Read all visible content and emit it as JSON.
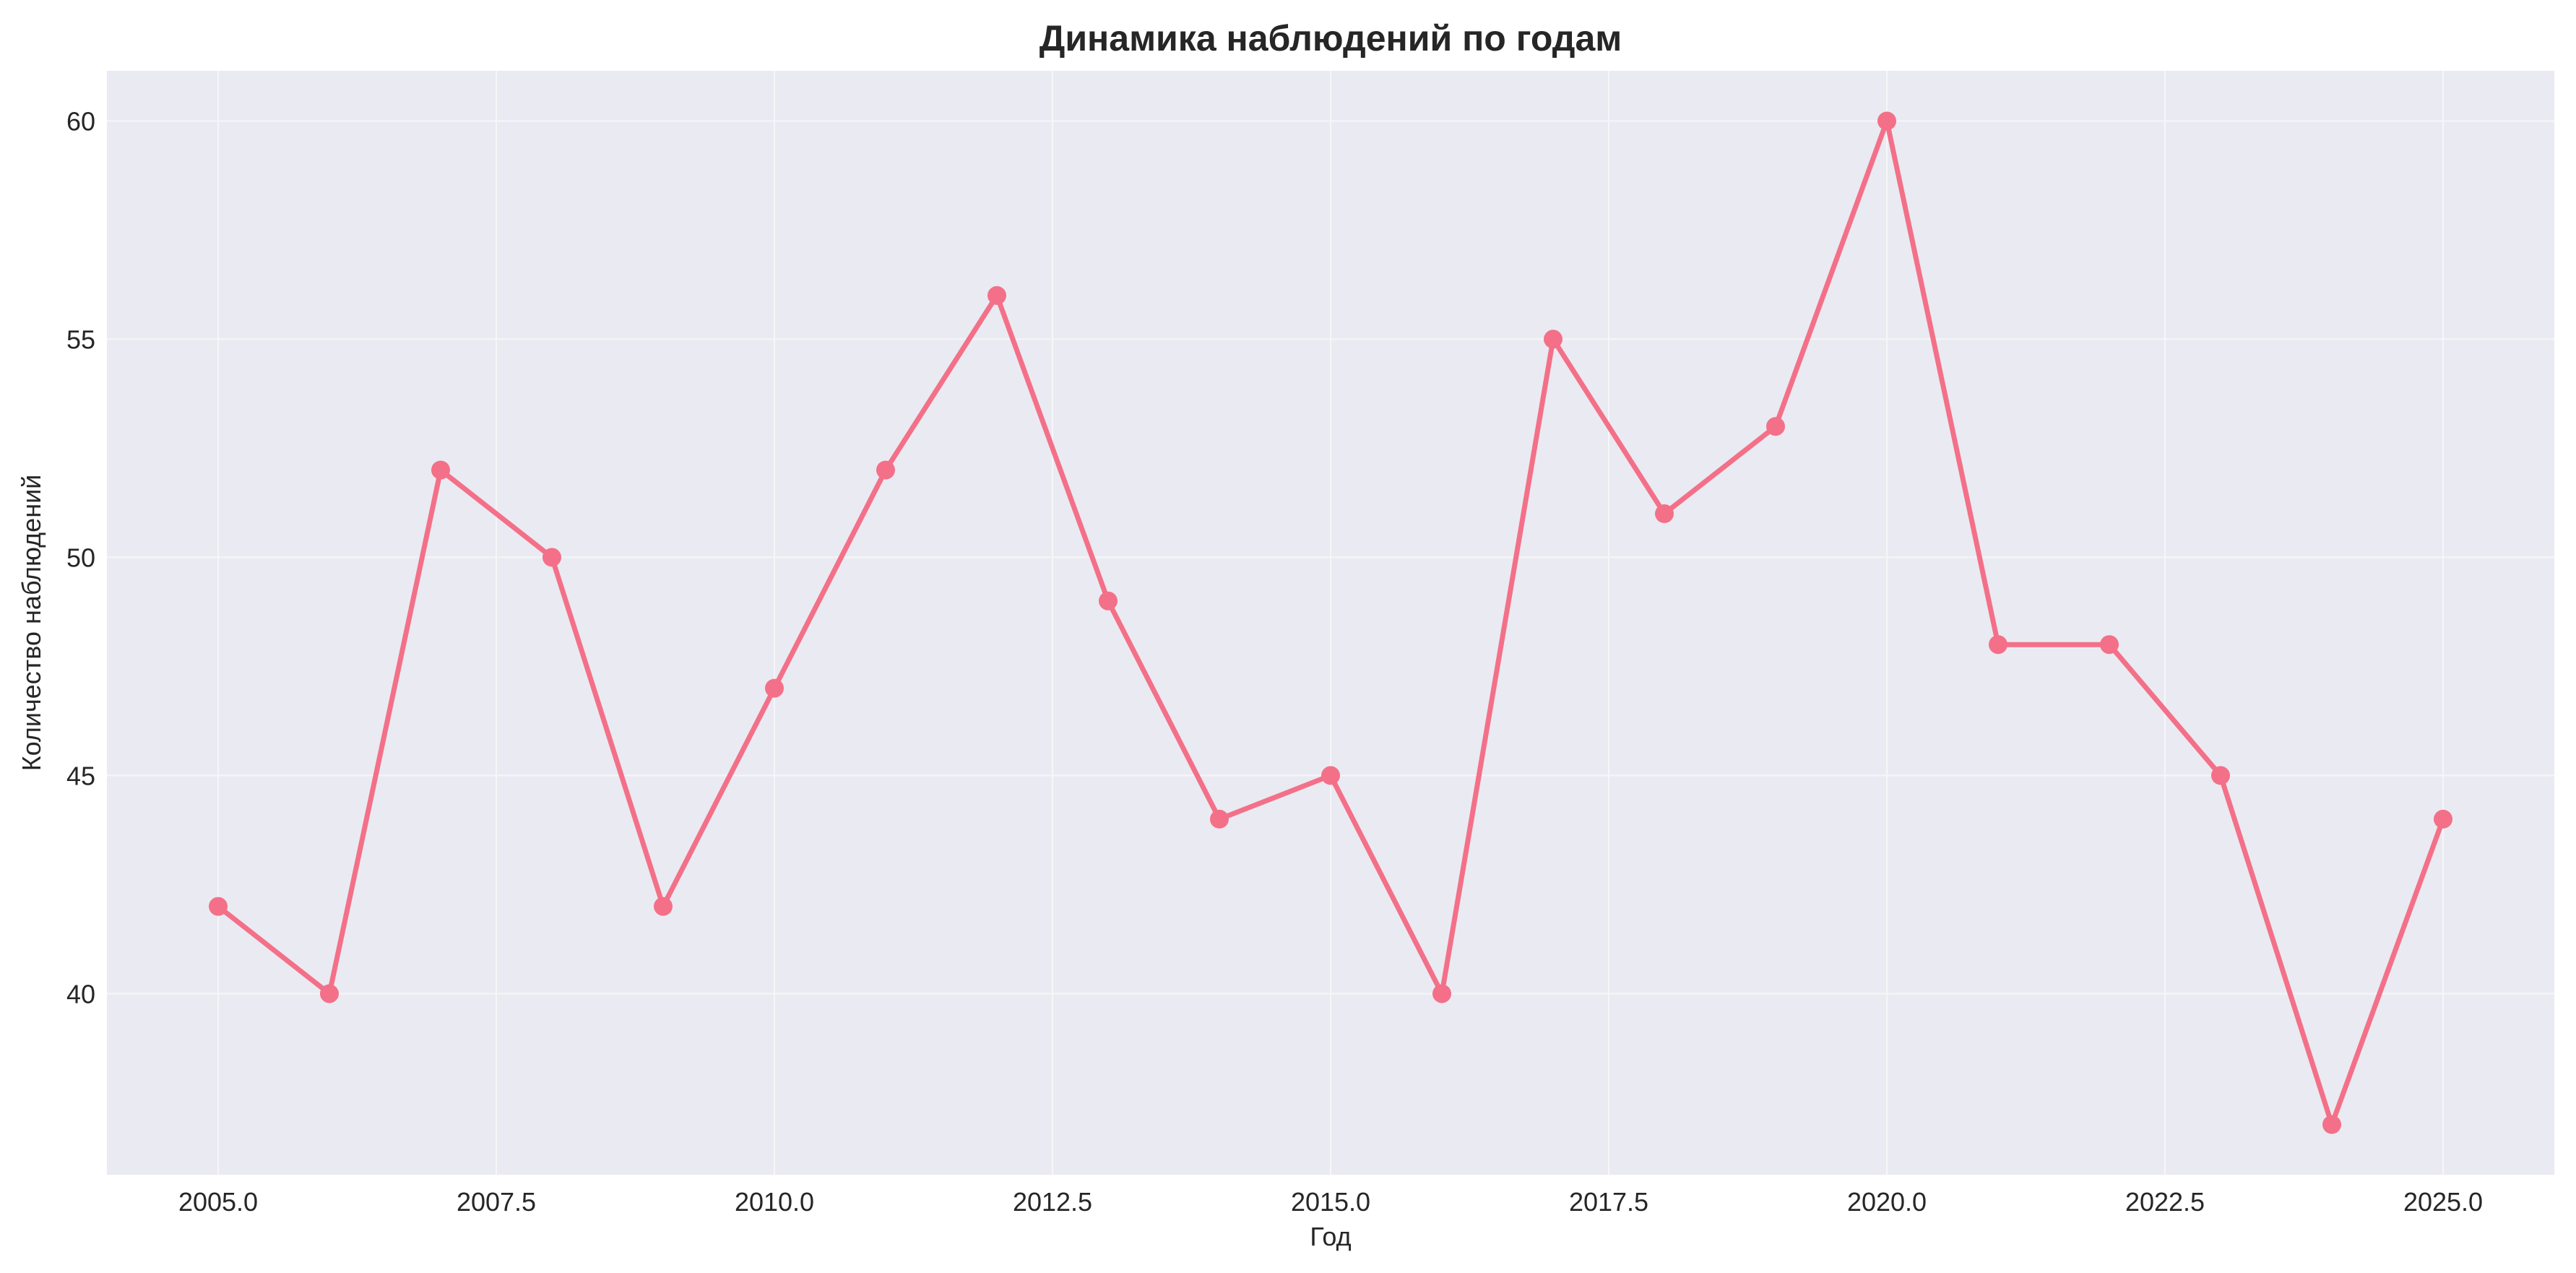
{
  "chart_data": {
    "type": "line",
    "title": "Динамика наблюдений по годам",
    "xlabel": "Год",
    "ylabel": "Количество наблюдений",
    "x": [
      2005,
      2006,
      2007,
      2008,
      2009,
      2010,
      2011,
      2012,
      2013,
      2014,
      2015,
      2016,
      2017,
      2018,
      2019,
      2020,
      2021,
      2022,
      2023,
      2024,
      2025
    ],
    "series": [
      {
        "values": [
          42,
          40,
          52,
          50,
          42,
          47,
          52,
          56,
          49,
          44,
          45,
          40,
          55,
          51,
          53,
          60,
          48,
          48,
          45,
          37,
          44
        ]
      }
    ],
    "xticks": [
      "2005.0",
      "2007.5",
      "2010.0",
      "2012.5",
      "2015.0",
      "2017.5",
      "2020.0",
      "2022.5",
      "2025.0"
    ],
    "yticks": [
      "40",
      "45",
      "50",
      "55",
      "60"
    ],
    "xlim": [
      2004,
      2026
    ],
    "ylim": [
      35.85,
      61.15
    ],
    "grid": true,
    "line_color": "#f37088",
    "plot_background": "#eaeaf2",
    "grid_color": "#f6f6f9"
  }
}
